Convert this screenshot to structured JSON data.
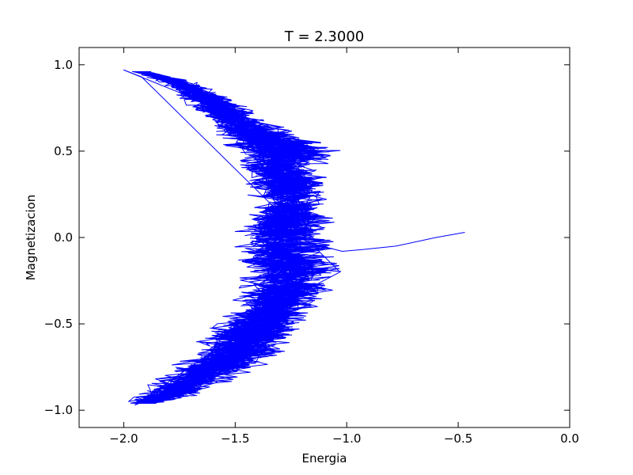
{
  "chart_data": {
    "type": "line",
    "title": "T = 2.3000",
    "xlabel": "Energia",
    "ylabel": "Magnetizacion",
    "xlim": [
      -2.2,
      0.0
    ],
    "ylim": [
      -1.1,
      1.1
    ],
    "xticks": [
      -2.0,
      -1.5,
      -1.0,
      -0.5,
      0.0
    ],
    "xtick_labels": [
      "−2.0",
      "−1.5",
      "−1.0",
      "−0.5",
      "0.0"
    ],
    "yticks": [
      1.0,
      0.5,
      0.0,
      -0.5,
      -1.0
    ],
    "ytick_labels": [
      "1.0",
      "0.5",
      "0.0",
      "−0.5",
      "−1.0"
    ],
    "grid": false,
    "series": [
      {
        "color": "#0000ff",
        "description": "Monte Carlo trajectory of (energy, magnetization); dense band estimated from image",
        "start": {
          "x": -0.47,
          "y": 0.03
        },
        "lead_in": [
          {
            "x": -0.47,
            "y": 0.03
          },
          {
            "x": -0.6,
            "y": 0.0
          },
          {
            "x": -0.78,
            "y": -0.05
          },
          {
            "x": -0.93,
            "y": -0.07
          },
          {
            "x": -1.02,
            "y": -0.08
          },
          {
            "x": -1.08,
            "y": -0.06
          }
        ],
        "band_profile": [
          {
            "y": 0.97,
            "x_left": -2.0,
            "x_right": -1.9
          },
          {
            "y": 0.9,
            "x_left": -1.85,
            "x_right": -1.67
          },
          {
            "y": 0.8,
            "x_left": -1.75,
            "x_right": -1.5
          },
          {
            "y": 0.7,
            "x_left": -1.68,
            "x_right": -1.37
          },
          {
            "y": 0.6,
            "x_left": -1.6,
            "x_right": -1.22
          },
          {
            "y": 0.52,
            "x_left": -1.55,
            "x_right": -1.0
          },
          {
            "y": 0.4,
            "x_left": -1.5,
            "x_right": -1.1
          },
          {
            "y": 0.3,
            "x_left": -1.46,
            "x_right": -1.07
          },
          {
            "y": 0.2,
            "x_left": -1.44,
            "x_right": -1.07
          },
          {
            "y": 0.1,
            "x_left": -1.48,
            "x_right": -1.05
          },
          {
            "y": 0.0,
            "x_left": -1.53,
            "x_right": -1.05
          },
          {
            "y": -0.1,
            "x_left": -1.52,
            "x_right": -1.05
          },
          {
            "y": -0.2,
            "x_left": -1.48,
            "x_right": -1.02
          },
          {
            "y": -0.3,
            "x_left": -1.5,
            "x_right": -1.05
          },
          {
            "y": -0.4,
            "x_left": -1.53,
            "x_right": -1.12
          },
          {
            "y": -0.5,
            "x_left": -1.6,
            "x_right": -1.17
          },
          {
            "y": -0.6,
            "x_left": -1.68,
            "x_right": -1.22
          },
          {
            "y": -0.7,
            "x_left": -1.75,
            "x_right": -1.3
          },
          {
            "y": -0.8,
            "x_left": -1.85,
            "x_right": -1.45
          },
          {
            "y": -0.9,
            "x_left": -1.95,
            "x_right": -1.62
          },
          {
            "y": -0.97,
            "x_left": -2.0,
            "x_right": -1.85
          }
        ],
        "extremes": {
          "top": {
            "x": -2.0,
            "y": 0.97
          },
          "bottom": {
            "x": -1.95,
            "y": -0.97
          },
          "rightmost_spike": {
            "x": -1.03,
            "y": -0.2
          }
        }
      }
    ]
  }
}
